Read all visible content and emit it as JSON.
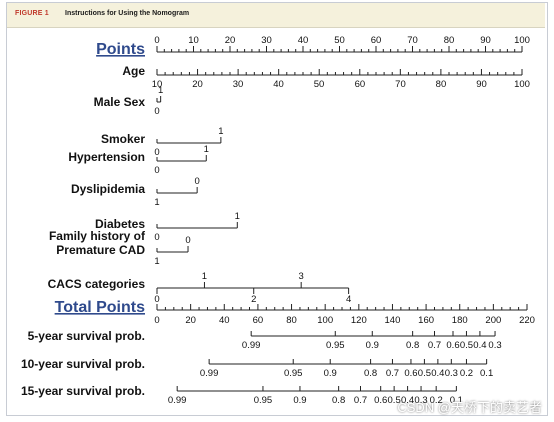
{
  "header": {
    "figure_label": "FIGURE 1",
    "figure_title": "Instructions for Using the Nomogram"
  },
  "watermark": "CSDN @天桥下的卖艺者",
  "chart_data": {
    "type": "nomogram",
    "points_label": "Points",
    "total_points_label": "Total Points",
    "points_axis": {
      "min": 0,
      "max": 100,
      "labels": [
        "0",
        "10",
        "20",
        "30",
        "40",
        "50",
        "60",
        "70",
        "80",
        "90",
        "100"
      ]
    },
    "predictors": [
      {
        "name": "Age",
        "ticks": [
          {
            "label": "10",
            "points": 0
          },
          {
            "label": "20",
            "points": 11.1
          },
          {
            "label": "30",
            "points": 22.2
          },
          {
            "label": "40",
            "points": 33.3
          },
          {
            "label": "50",
            "points": 44.4
          },
          {
            "label": "60",
            "points": 55.6
          },
          {
            "label": "70",
            "points": 66.7
          },
          {
            "label": "80",
            "points": 77.8
          },
          {
            "label": "90",
            "points": 88.9
          },
          {
            "label": "100",
            "points": 100
          }
        ]
      },
      {
        "name": "Male Sex",
        "ticks": [
          {
            "label": "0",
            "points": 0
          },
          {
            "label": "1",
            "points": 1
          }
        ]
      },
      {
        "name": "Smoker",
        "ticks": [
          {
            "label": "0",
            "points": 0
          },
          {
            "label": "1",
            "points": 17.5
          }
        ]
      },
      {
        "name": "Hypertension",
        "ticks": [
          {
            "label": "0",
            "points": 0
          },
          {
            "label": "1",
            "points": 13.5
          }
        ]
      },
      {
        "name": "Dyslipidemia",
        "ticks": [
          {
            "label": "1",
            "points": 0
          },
          {
            "label": "0",
            "points": 11
          }
        ]
      },
      {
        "name": "Diabetes",
        "ticks": [
          {
            "label": "0",
            "points": 0
          },
          {
            "label": "1",
            "points": 22
          }
        ]
      },
      {
        "name": "Family history of Premature CAD",
        "ticks": [
          {
            "label": "1",
            "points": 0
          },
          {
            "label": "0",
            "points": 8.5
          }
        ]
      },
      {
        "name": "CACS categories",
        "ticks": [
          {
            "label": "0",
            "points": 0
          },
          {
            "label": "1",
            "points": 13
          },
          {
            "label": "2",
            "points": 26.5
          },
          {
            "label": "3",
            "points": 39.5
          },
          {
            "label": "4",
            "points": 52.5
          }
        ]
      }
    ],
    "total_points_axis": {
      "min": 0,
      "max": 220,
      "labels": [
        "0",
        "20",
        "40",
        "60",
        "80",
        "100",
        "120",
        "140",
        "160",
        "180",
        "200",
        "220"
      ]
    },
    "outcomes": [
      {
        "name": "5-year survival prob.",
        "ticks": [
          {
            "label": "0.99",
            "total": 56
          },
          {
            "label": "0.95",
            "total": 106
          },
          {
            "label": "0.9",
            "total": 128
          },
          {
            "label": "0.8",
            "total": 152
          },
          {
            "label": "0.7",
            "total": 165
          },
          {
            "label": "0.6",
            "total": 176
          },
          {
            "label": "0.5",
            "total": 184
          },
          {
            "label": "0.4",
            "total": 192
          },
          {
            "label": "0.3",
            "total": 201
          }
        ]
      },
      {
        "name": "10-year survival prob.",
        "ticks": [
          {
            "label": "0.99",
            "total": 31
          },
          {
            "label": "0.95",
            "total": 81
          },
          {
            "label": "0.9",
            "total": 103
          },
          {
            "label": "0.8",
            "total": 127
          },
          {
            "label": "0.7",
            "total": 140
          },
          {
            "label": "0.6",
            "total": 151
          },
          {
            "label": "0.5",
            "total": 159
          },
          {
            "label": "0.4",
            "total": 167
          },
          {
            "label": "0.3",
            "total": 175
          },
          {
            "label": "0.2",
            "total": 184
          },
          {
            "label": "0.1",
            "total": 196
          }
        ]
      },
      {
        "name": "15-year survival prob.",
        "ticks": [
          {
            "label": "0.99",
            "total": 12
          },
          {
            "label": "0.95",
            "total": 63
          },
          {
            "label": "0.9",
            "total": 85
          },
          {
            "label": "0.8",
            "total": 108
          },
          {
            "label": "0.7",
            "total": 121
          },
          {
            "label": "0.6",
            "total": 133
          },
          {
            "label": "0.5",
            "total": 141
          },
          {
            "label": "0.4",
            "total": 149
          },
          {
            "label": "0.3",
            "total": 157
          },
          {
            "label": "0.2",
            "total": 166
          },
          {
            "label": "0.1",
            "total": 178
          }
        ]
      }
    ]
  }
}
